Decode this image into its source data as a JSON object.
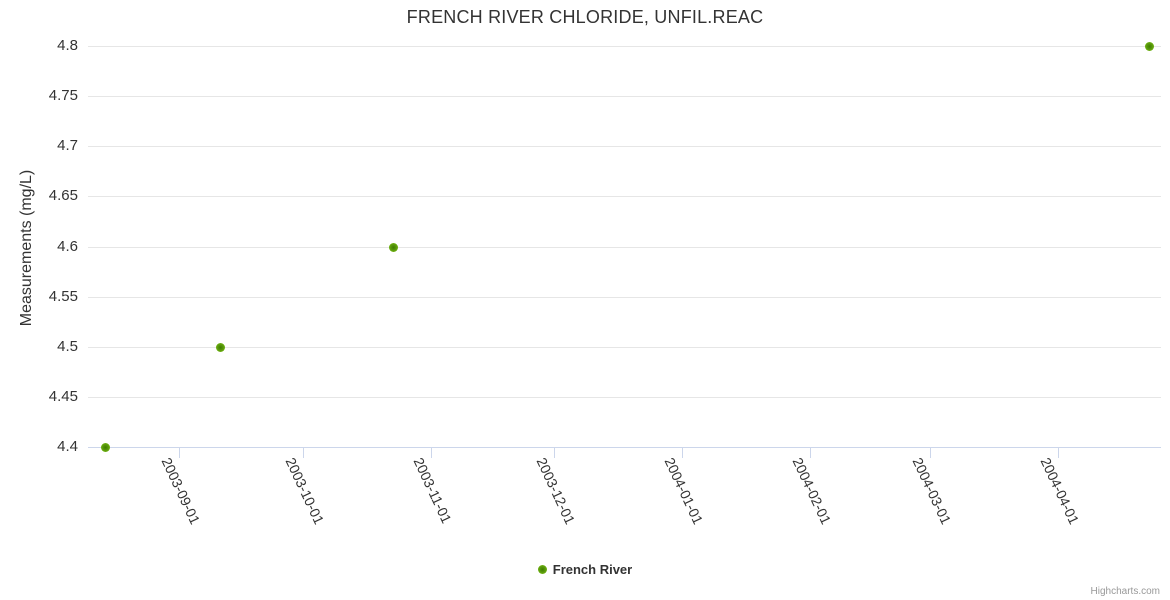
{
  "title": "FRENCH RIVER CHLORIDE, UNFIL.REAC",
  "credits_label": "Highcharts.com",
  "legend": {
    "items": [
      {
        "label": "French River",
        "marker_color": "#5ea408"
      }
    ]
  },
  "chart_data": {
    "type": "scatter",
    "title": "FRENCH RIVER CHLORIDE, UNFIL.REAC",
    "xlabel": "",
    "ylabel": "Measurements (mg/L)",
    "legend_position": "bottom-center",
    "grid": "horizontal",
    "series": [
      {
        "name": "French River",
        "color": "#5ea408",
        "points": [
          {
            "x": "2003-08-14",
            "y": 4.4
          },
          {
            "x": "2003-09-11",
            "y": 4.5
          },
          {
            "x": "2003-10-23",
            "y": 4.6
          },
          {
            "x": "2004-04-23",
            "y": 4.8
          }
        ]
      }
    ],
    "xaxis": {
      "type": "datetime",
      "min": "2003-08-10",
      "max": "2004-04-26",
      "ticks": [
        "2003-09-01",
        "2003-10-01",
        "2003-11-01",
        "2003-12-01",
        "2004-01-01",
        "2004-02-01",
        "2004-03-01",
        "2004-04-01"
      ]
    },
    "yaxis": {
      "min": 4.4,
      "max": 4.8,
      "tick_interval": 0.05,
      "tick_labels": [
        "4.4",
        "4.45",
        "4.5",
        "4.55",
        "4.6",
        "4.65",
        "4.7",
        "4.75",
        "4.8"
      ]
    }
  }
}
